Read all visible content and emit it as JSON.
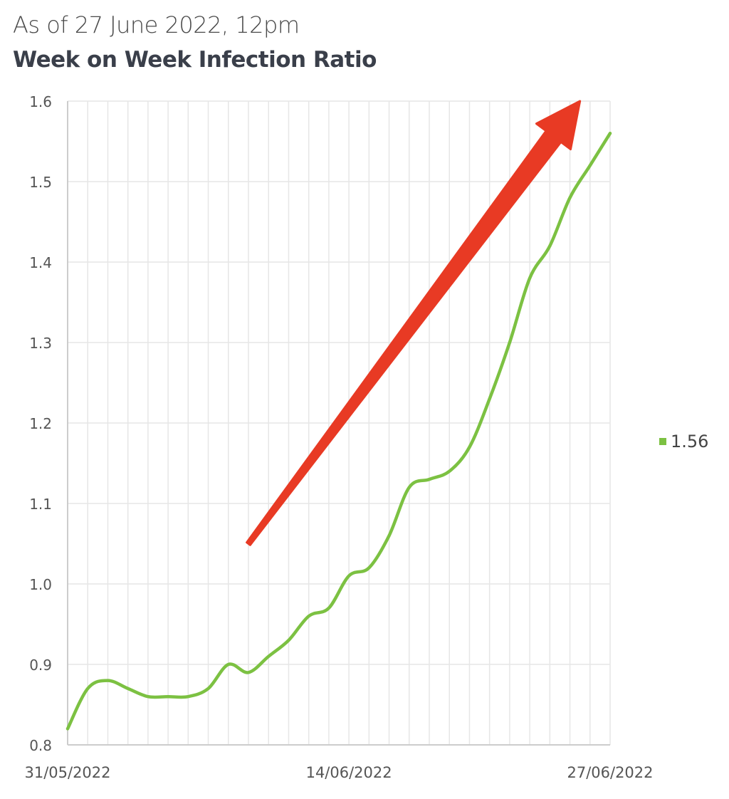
{
  "header": {
    "as_of": "As of 27 June 2022, 12pm",
    "title": "Week on Week Infection Ratio"
  },
  "legend": {
    "label": "1.56",
    "color": "#7cc142"
  },
  "colors": {
    "line": "#7cc142",
    "arrow": "#e83a24",
    "grid": "#e6e6e6",
    "axis": "#cccccc",
    "tick_text": "#555555"
  },
  "chart_data": {
    "type": "line",
    "title": "Week on Week Infection Ratio",
    "xlabel": "",
    "ylabel": "",
    "ylim": [
      0.8,
      1.6
    ],
    "yticks": [
      "0.8",
      "0.9",
      "1.0",
      "1.1",
      "1.2",
      "1.3",
      "1.4",
      "1.5",
      "1.6"
    ],
    "x_tick_labels": [
      {
        "index": 0,
        "label": "31/05/2022"
      },
      {
        "index": 14,
        "label": "14/06/2022"
      },
      {
        "index": 27,
        "label": "27/06/2022"
      }
    ],
    "legend_position": "right",
    "grid": true,
    "series": [
      {
        "name": "1.56",
        "color": "#7cc142",
        "x": [
          "31/05/2022",
          "01/06/2022",
          "02/06/2022",
          "03/06/2022",
          "04/06/2022",
          "05/06/2022",
          "06/06/2022",
          "07/06/2022",
          "08/06/2022",
          "09/06/2022",
          "10/06/2022",
          "11/06/2022",
          "12/06/2022",
          "13/06/2022",
          "14/06/2022",
          "15/06/2022",
          "16/06/2022",
          "17/06/2022",
          "18/06/2022",
          "19/06/2022",
          "20/06/2022",
          "21/06/2022",
          "22/06/2022",
          "23/06/2022",
          "24/06/2022",
          "25/06/2022",
          "26/06/2022",
          "27/06/2022"
        ],
        "values": [
          0.82,
          0.87,
          0.88,
          0.87,
          0.86,
          0.86,
          0.86,
          0.87,
          0.9,
          0.89,
          0.91,
          0.93,
          0.96,
          0.97,
          1.01,
          1.02,
          1.06,
          1.12,
          1.13,
          1.14,
          1.17,
          1.23,
          1.3,
          1.38,
          1.42,
          1.48,
          1.52,
          1.56
        ]
      }
    ],
    "annotations": [
      {
        "type": "arrow",
        "color": "#e83a24",
        "from": {
          "index": 9,
          "value": 1.05
        },
        "to": {
          "index": 25.5,
          "value": 1.6
        }
      }
    ]
  }
}
